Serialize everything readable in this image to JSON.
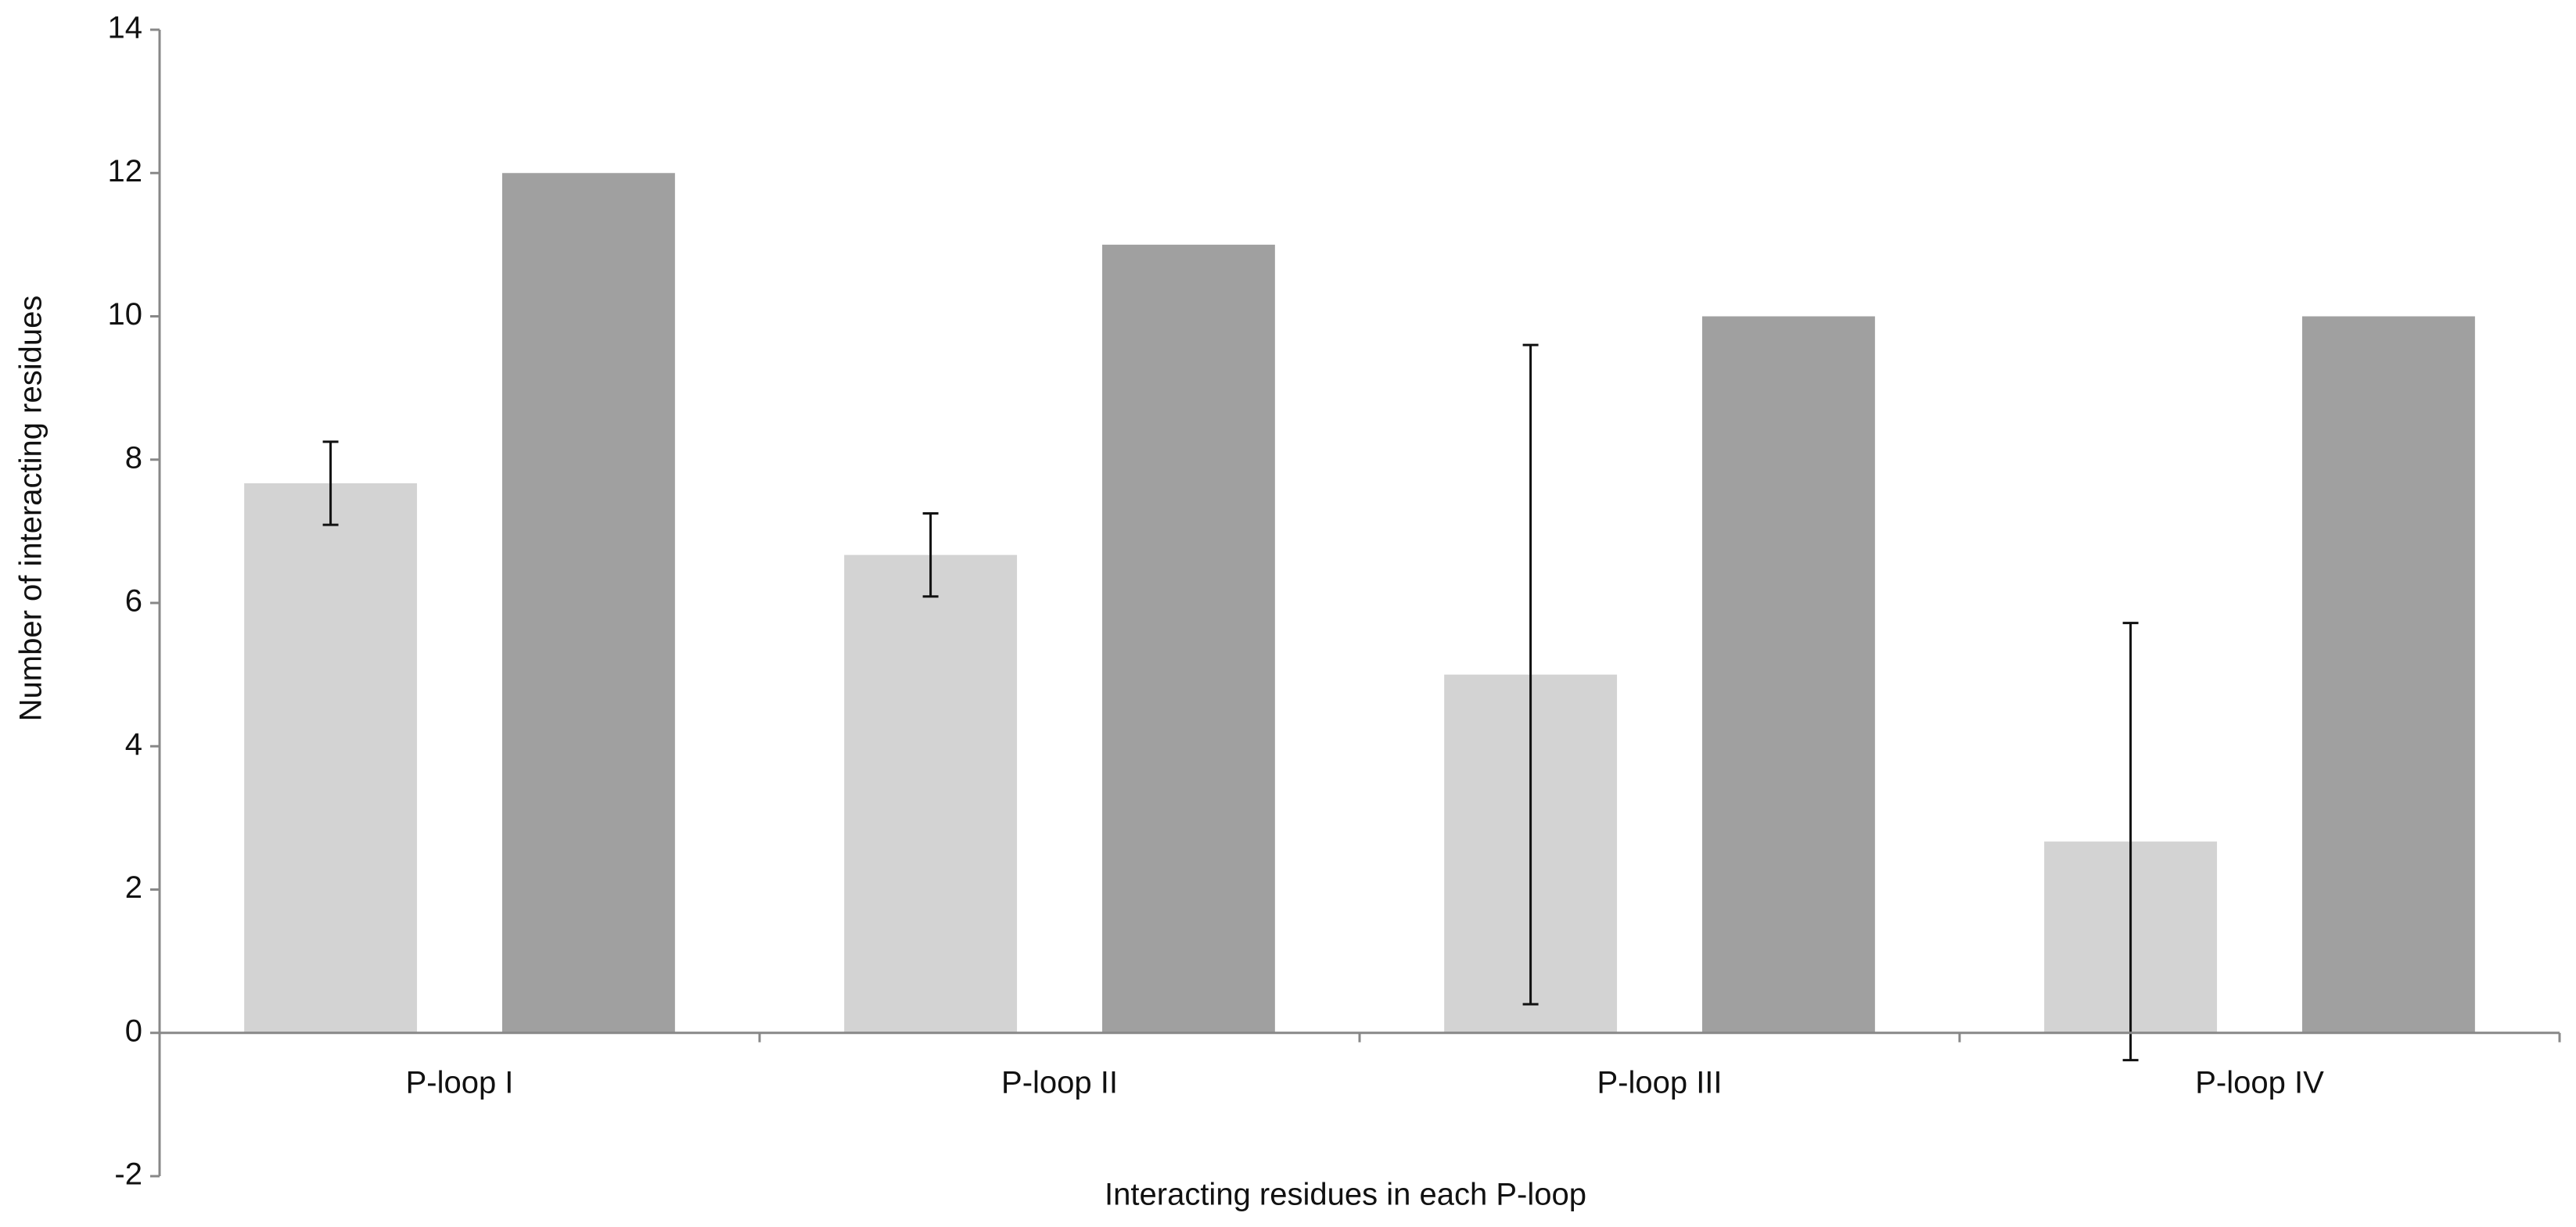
{
  "chart_data": {
    "type": "bar",
    "x_label": "Interacting residues in each P-loop",
    "y_label": "Number of interacting residues",
    "categories": [
      "P-loop I",
      "P-loop II",
      "P-loop III",
      "P-loop IV"
    ],
    "series": [
      {
        "color": "#d3d3d3",
        "values": [
          7.67,
          6.67,
          5.0,
          2.67
        ],
        "errors": [
          0.58,
          0.58,
          4.6,
          3.05
        ]
      },
      {
        "color": "#a0a0a0",
        "values": [
          12,
          11,
          10,
          10
        ]
      }
    ],
    "ylim": [
      -2,
      14
    ],
    "yticks": [
      -2,
      0,
      2,
      4,
      6,
      8,
      10,
      12,
      14
    ],
    "grid": false
  }
}
